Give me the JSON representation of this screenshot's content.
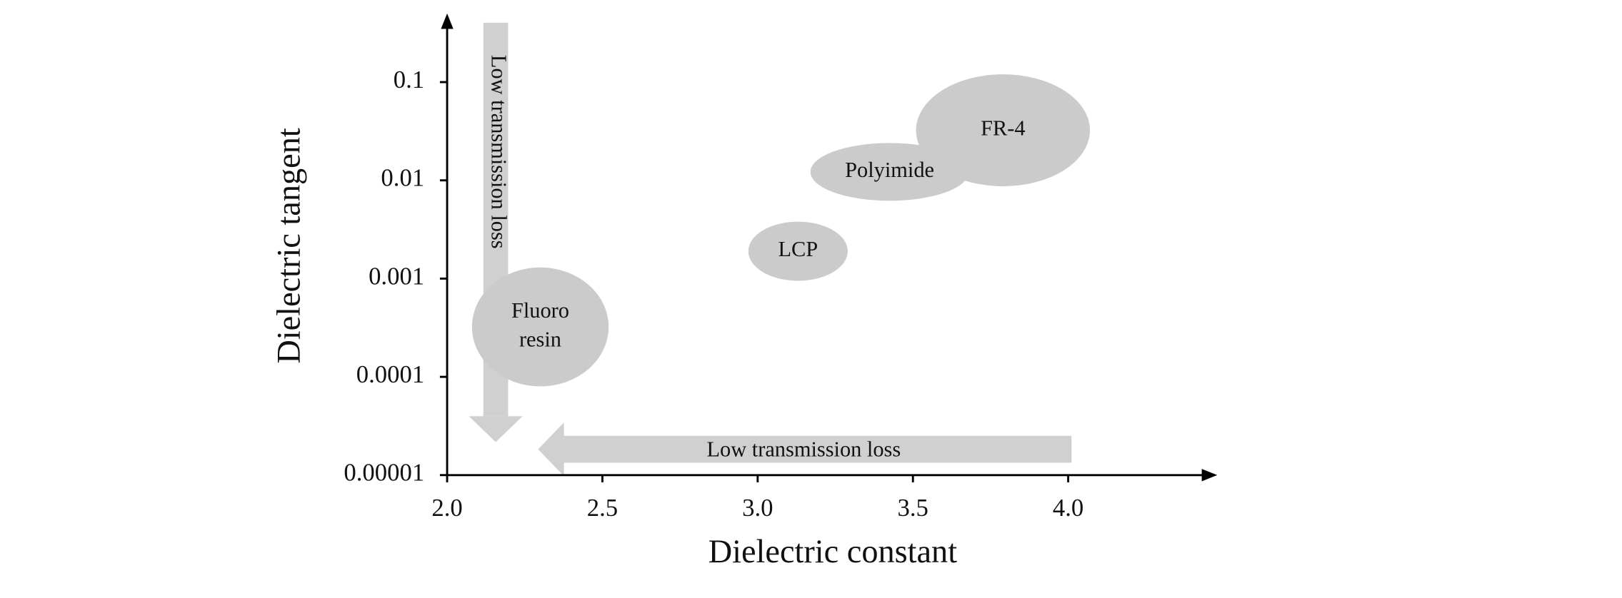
{
  "chart_data": {
    "type": "region",
    "x_label": "Dielectric constant",
    "y_label": "Dielectric tangent",
    "log_y": true,
    "xlim": [
      2.0,
      4.48
    ],
    "ylim": [
      1e-05,
      0.5
    ],
    "xticks": [
      {
        "value": 2.0,
        "label": "2.0"
      },
      {
        "value": 2.5,
        "label": "2.5"
      },
      {
        "value": 3.0,
        "label": "3.0"
      },
      {
        "value": 3.5,
        "label": "3.5"
      },
      {
        "value": 4.0,
        "label": "4.0"
      }
    ],
    "yticks": [
      1e-05,
      0.0001,
      0.001,
      0.01,
      0.1
    ],
    "color": "#cbcbcb",
    "regions": [
      {
        "name": "LCP",
        "x": [
          2.97,
          3.29
        ],
        "y": [
          0.00095,
          0.0038
        ]
      },
      {
        "name": "Polyimide",
        "x": [
          3.17,
          3.68
        ],
        "y": [
          0.0062,
          0.024
        ]
      },
      {
        "name": "FR-4",
        "x": [
          3.51,
          4.07
        ],
        "y": [
          0.0087,
          0.12
        ]
      },
      {
        "name": "Fluoro resin",
        "x": [
          2.08,
          2.52
        ],
        "y": [
          8e-05,
          0.0013
        ]
      }
    ],
    "annotations": [
      "Low transmission loss",
      "Low transmission loss"
    ]
  }
}
